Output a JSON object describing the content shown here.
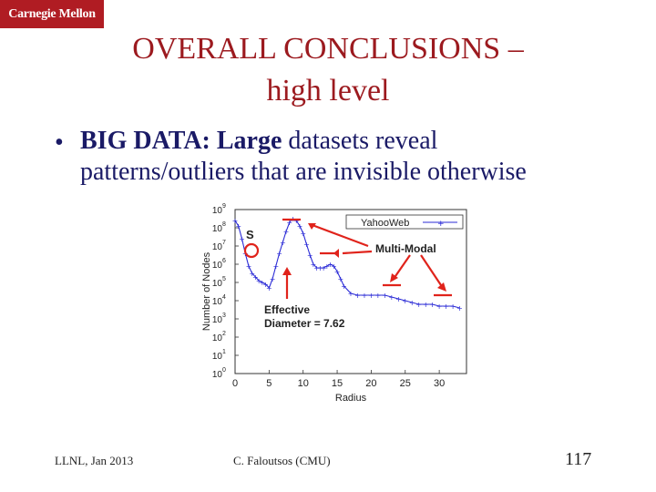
{
  "logo": {
    "text": "Carnegie Mellon",
    "color": "#b01c23"
  },
  "title": {
    "line1": "OVERALL CONCLUSIONS –",
    "line2": "high level",
    "color": "#9c1a1f"
  },
  "bullet": {
    "bold1": "BIG DATA:",
    "bold2": "Large",
    "text1": " datasets reveal",
    "text2": "patterns/outliers that are invisible otherwise"
  },
  "footer": {
    "left": "LLNL, Jan 2013",
    "center": "C. Faloutsos (CMU)",
    "page": "117"
  },
  "chart_data": {
    "type": "line",
    "xlabel": "Radius",
    "ylabel": "Number of Nodes",
    "xlim": [
      0,
      34
    ],
    "ylim": [
      0,
      9
    ],
    "y_log_scale": true,
    "xticks": [
      "0",
      "5",
      "10",
      "15",
      "20",
      "25",
      "30"
    ],
    "ytick_exponents": [
      0,
      1,
      2,
      3,
      4,
      5,
      6,
      7,
      8,
      9
    ],
    "series": [
      {
        "name": "YahooWeb",
        "color": "#2b2bd6",
        "x": [
          0,
          0.5,
          1,
          1.5,
          2,
          2.5,
          3,
          3.5,
          4,
          4.5,
          5,
          5.5,
          6,
          6.5,
          7,
          7.5,
          8,
          8.5,
          9,
          9.5,
          10,
          10.5,
          11,
          11.5,
          12,
          12.5,
          13,
          13.5,
          14,
          14.5,
          15,
          15.5,
          16,
          17,
          18,
          19,
          20,
          21,
          22,
          23,
          24,
          25,
          26,
          27,
          28,
          29,
          30,
          31,
          32,
          33
        ],
        "y": [
          8.4,
          8.1,
          7.4,
          6.6,
          5.9,
          5.5,
          5.3,
          5.1,
          5.0,
          4.9,
          4.7,
          5.2,
          5.9,
          6.6,
          7.2,
          7.8,
          8.3,
          8.5,
          8.4,
          8.1,
          7.7,
          7.1,
          6.5,
          6.0,
          5.8,
          5.8,
          5.8,
          5.9,
          6.0,
          5.9,
          5.6,
          5.2,
          4.8,
          4.4,
          4.3,
          4.3,
          4.3,
          4.3,
          4.3,
          4.2,
          4.1,
          4.0,
          3.9,
          3.8,
          3.8,
          3.8,
          3.7,
          3.7,
          3.7,
          3.6
        ]
      }
    ],
    "annotations": {
      "s_label": "S",
      "multimodal_label": "Multi-Modal",
      "effective_line1": "Effective",
      "effective_line2": "Diameter = 7.62"
    },
    "annotation_color": "#e0231b"
  }
}
